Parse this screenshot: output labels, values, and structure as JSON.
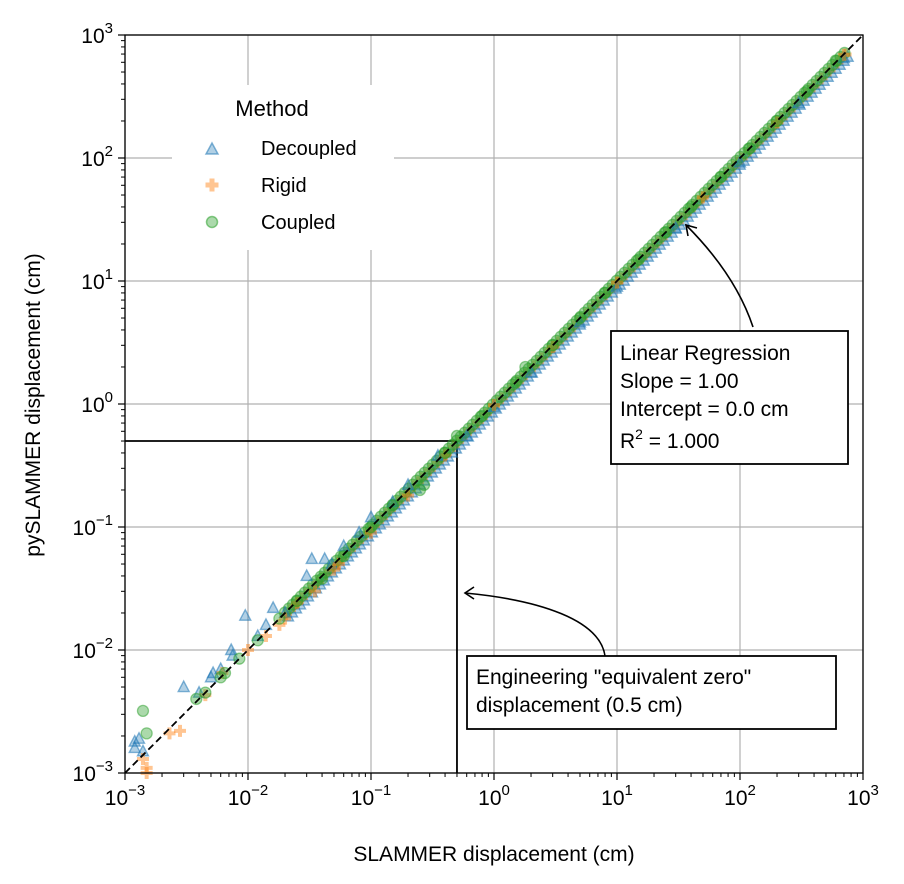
{
  "chart_data": {
    "type": "scatter",
    "x_scale": "log",
    "y_scale": "log",
    "xlim": [
      0.001,
      1000
    ],
    "ylim": [
      0.001,
      1000
    ],
    "xlabel": "SLAMMER displacement (cm)",
    "ylabel": "pySLAMMER displacement (cm)",
    "tick_base": "10",
    "x_ticks": [
      {
        "value": 0.001,
        "exp": "−3"
      },
      {
        "value": 0.01,
        "exp": "−2"
      },
      {
        "value": 0.1,
        "exp": "−1"
      },
      {
        "value": 1,
        "exp": "0"
      },
      {
        "value": 10,
        "exp": "1"
      },
      {
        "value": 100,
        "exp": "2"
      },
      {
        "value": 1000,
        "exp": "3"
      }
    ],
    "y_ticks": [
      {
        "value": 0.001,
        "exp": "−3"
      },
      {
        "value": 0.01,
        "exp": "−2"
      },
      {
        "value": 0.1,
        "exp": "−1"
      },
      {
        "value": 1,
        "exp": "0"
      },
      {
        "value": 10,
        "exp": "1"
      },
      {
        "value": 100,
        "exp": "2"
      },
      {
        "value": 1000,
        "exp": "3"
      }
    ],
    "grid": true,
    "legend": {
      "title": "Method",
      "placement": "upper-left",
      "entries": [
        "Decoupled",
        "Rigid",
        "Coupled"
      ]
    },
    "series": [
      {
        "name": "Decoupled",
        "marker": "triangle",
        "color": "#1f77b4",
        "points": [
          [
            0.0012,
            0.0016
          ],
          [
            0.0012,
            0.0018
          ],
          [
            0.0013,
            0.0019
          ],
          [
            0.0014,
            0.0015
          ],
          [
            0.003,
            0.005
          ],
          [
            0.004,
            0.0045
          ],
          [
            0.005,
            0.006
          ],
          [
            0.0052,
            0.0065
          ],
          [
            0.006,
            0.007
          ],
          [
            0.0073,
            0.01
          ],
          [
            0.0075,
            0.009
          ],
          [
            0.0095,
            0.019
          ],
          [
            0.012,
            0.013
          ],
          [
            0.014,
            0.016
          ],
          [
            0.016,
            0.022
          ],
          [
            0.02,
            0.02
          ],
          [
            0.03,
            0.04
          ],
          [
            0.033,
            0.055
          ],
          [
            0.042,
            0.055
          ],
          [
            0.048,
            0.05
          ],
          [
            0.06,
            0.07
          ],
          [
            0.08,
            0.09
          ],
          [
            0.1,
            0.12
          ],
          [
            0.15,
            0.16
          ],
          [
            0.2,
            0.22
          ],
          [
            0.35,
            0.38
          ],
          [
            0.6,
            0.55
          ],
          [
            1,
            0.95
          ],
          [
            2,
            1.8
          ],
          [
            5,
            4.6
          ],
          [
            10,
            9
          ],
          [
            30,
            27
          ],
          [
            100,
            92
          ],
          [
            300,
            280
          ],
          [
            700,
            650
          ]
        ]
      },
      {
        "name": "Rigid",
        "marker": "plus",
        "color": "#ff7f0e",
        "points": [
          [
            0.0014,
            0.0013
          ],
          [
            0.0015,
            0.001
          ],
          [
            0.0015,
            0.0011
          ],
          [
            0.0023,
            0.0021
          ],
          [
            0.0028,
            0.0022
          ],
          [
            0.0045,
            0.0043
          ],
          [
            0.0062,
            0.0065
          ],
          [
            0.01,
            0.01
          ],
          [
            0.014,
            0.013
          ],
          [
            0.018,
            0.016
          ],
          [
            0.02,
            0.018
          ],
          [
            0.025,
            0.024
          ],
          [
            0.035,
            0.03
          ],
          [
            0.05,
            0.045
          ],
          [
            0.055,
            0.05
          ],
          [
            0.1,
            0.09
          ],
          [
            0.2,
            0.18
          ],
          [
            0.4,
            0.38
          ],
          [
            1,
            0.98
          ],
          [
            3,
            2.9
          ],
          [
            10,
            9.7
          ],
          [
            50,
            48
          ],
          [
            200,
            195
          ],
          [
            700,
            690
          ]
        ]
      },
      {
        "name": "Coupled",
        "marker": "circle",
        "color": "#2ca02c",
        "points": [
          [
            0.0014,
            0.0032
          ],
          [
            0.0015,
            0.0021
          ],
          [
            0.0038,
            0.004
          ],
          [
            0.0045,
            0.0045
          ],
          [
            0.006,
            0.006
          ],
          [
            0.0065,
            0.0065
          ],
          [
            0.0085,
            0.0085
          ],
          [
            0.012,
            0.012
          ],
          [
            0.018,
            0.018
          ],
          [
            0.025,
            0.025
          ],
          [
            0.04,
            0.038
          ],
          [
            0.06,
            0.058
          ],
          [
            0.1,
            0.1
          ],
          [
            0.15,
            0.15
          ],
          [
            0.25,
            0.2
          ],
          [
            0.27,
            0.22
          ],
          [
            0.4,
            0.4
          ],
          [
            0.5,
            0.55
          ],
          [
            0.8,
            0.8
          ],
          [
            1.5,
            1.5
          ],
          [
            1.8,
            2
          ],
          [
            3,
            3
          ],
          [
            5,
            5
          ],
          [
            8,
            8
          ],
          [
            15,
            15
          ],
          [
            25,
            25
          ],
          [
            40,
            40
          ],
          [
            70,
            70
          ],
          [
            120,
            120
          ],
          [
            200,
            200
          ],
          [
            350,
            350
          ],
          [
            600,
            620
          ]
        ]
      }
    ],
    "reference_line": {
      "type": "1:1",
      "style": "dashed",
      "color": "#000000"
    },
    "threshold_value_cm": 0.5,
    "annotations": {
      "regression": {
        "line1": "Linear Regression",
        "line2": "Slope = 1.00",
        "line3": "Intercept = 0.0 cm",
        "line4_prefix": "R",
        "line4_sup": "2",
        "line4_suffix": " = 1.000"
      },
      "zero": {
        "line1": "Engineering \"equivalent zero\"",
        "line2": "displacement (0.5 cm)"
      }
    }
  }
}
